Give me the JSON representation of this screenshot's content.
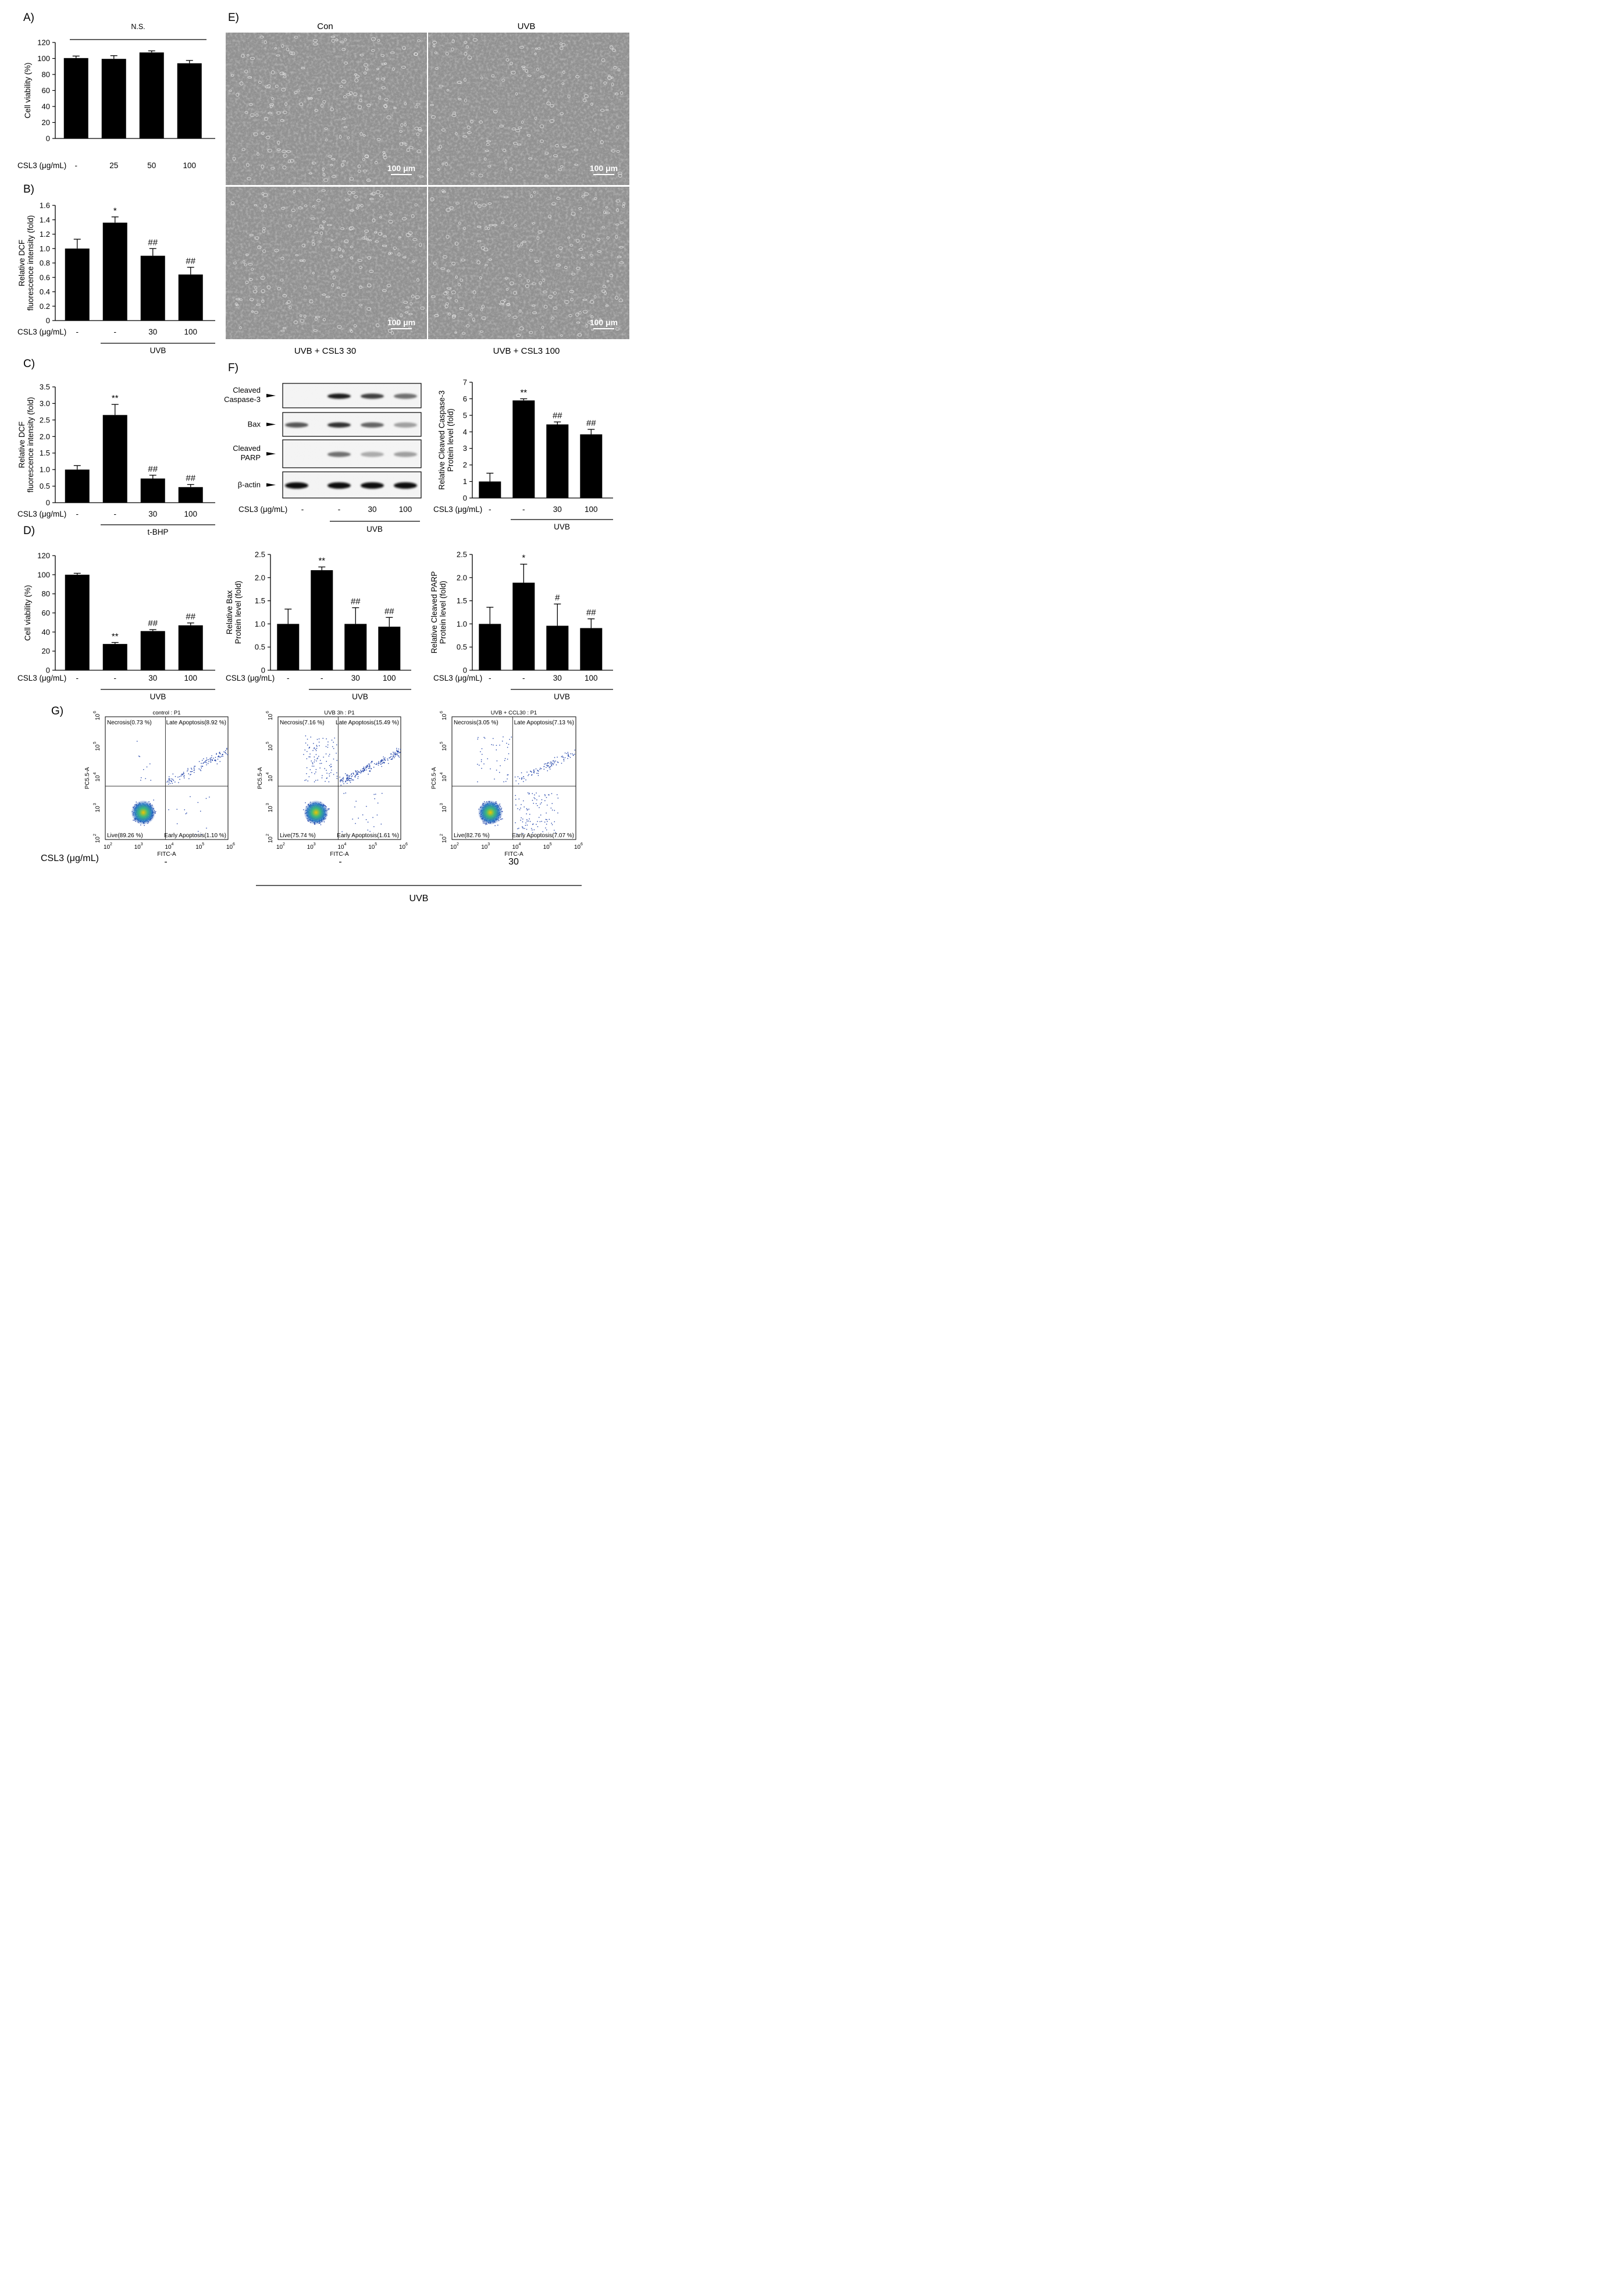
{
  "colors": {
    "bar": "#000000",
    "axis": "#000000",
    "micrograph": "#8f8f8f",
    "flow_dots": "#1c3fa8",
    "flow_core": "#3fbf7a",
    "flow_hot": "#f2c300"
  },
  "chart_data": [
    {
      "id": "A",
      "panel_label": "A)",
      "type": "bar",
      "ylabel": "Cell viability (%)",
      "ylim": [
        0,
        120
      ],
      "yticks": [
        0,
        20,
        40,
        60,
        80,
        100,
        120
      ],
      "cond_label": "CSL3 (μg/mL)",
      "categories": [
        "-",
        "25",
        "50",
        "100"
      ],
      "values": [
        100.5,
        99.5,
        107.5,
        94
      ],
      "errors": [
        2.5,
        4,
        2,
        3.5
      ],
      "top_line_label": "N.S.",
      "group_label": "",
      "group_from": 0,
      "group_to": 0
    },
    {
      "id": "B",
      "panel_label": "B)",
      "type": "bar",
      "ylabel": "Relative DCF fluorescence intensity (fold)",
      "ylabel_lines": [
        "Relative DCF",
        "fluorescence intensity (fold)"
      ],
      "ylim": [
        0,
        1.6
      ],
      "yticks": [
        "0",
        "0.2",
        "0.4",
        "0.6",
        "0.8",
        "1.0",
        "1.2",
        "1.4",
        "1.6"
      ],
      "cond_label": "CSL3 (μg/mL)",
      "categories": [
        "-",
        "-",
        "30",
        "100"
      ],
      "values": [
        1.0,
        1.36,
        0.9,
        0.64
      ],
      "errors": [
        0.13,
        0.08,
        0.1,
        0.1
      ],
      "sig": [
        "",
        "*",
        "##",
        "##"
      ],
      "group_label": "UVB",
      "group_from": 1,
      "group_to": 3
    },
    {
      "id": "C",
      "panel_label": "C)",
      "type": "bar",
      "ylabel": "Relative DCF fluorescence intensity (fold)",
      "ylabel_lines": [
        "Relative DCF",
        "fluorescence intensity (fold)"
      ],
      "ylim": [
        0,
        3.5
      ],
      "yticks": [
        "0",
        "0.5",
        "1.0",
        "1.5",
        "2.0",
        "2.5",
        "3.0",
        "3.5"
      ],
      "cond_label": "CSL3 (μg/mL)",
      "categories": [
        "-",
        "-",
        "30",
        "100"
      ],
      "values": [
        1.0,
        2.65,
        0.73,
        0.47
      ],
      "errors": [
        0.12,
        0.32,
        0.1,
        0.08
      ],
      "sig": [
        "",
        "**",
        "##",
        "##"
      ],
      "group_label": "t-BHP",
      "group_from": 1,
      "group_to": 3
    },
    {
      "id": "D",
      "panel_label": "D)",
      "type": "bar",
      "ylabel": "Cell viability (%)",
      "ylim": [
        0,
        120
      ],
      "yticks": [
        0,
        20,
        40,
        60,
        80,
        100,
        120
      ],
      "cond_label": "CSL3 (μg/mL)",
      "categories": [
        "-",
        "-",
        "30",
        "100"
      ],
      "values": [
        100,
        27.5,
        41,
        47
      ],
      "errors": [
        1.5,
        1.5,
        1.5,
        2.5
      ],
      "sig": [
        "",
        "**",
        "##",
        "##"
      ],
      "group_label": "UVB",
      "group_from": 1,
      "group_to": 3
    },
    {
      "id": "F1",
      "panel_label": "",
      "type": "bar",
      "ylabel": "Relative Cleaved Caspase-3 Protein level (fold)",
      "ylabel_lines": [
        "Relative Cleaved Caspase-3",
        "Protein level (fold)"
      ],
      "ylim": [
        0,
        7
      ],
      "yticks": [
        0,
        1,
        2,
        3,
        4,
        5,
        6,
        7
      ],
      "cond_label": "CSL3 (μg/mL)",
      "categories": [
        "-",
        "-",
        "30",
        "100"
      ],
      "values": [
        1.0,
        5.9,
        4.45,
        3.85
      ],
      "errors": [
        0.5,
        0.1,
        0.15,
        0.3
      ],
      "sig": [
        "",
        "**",
        "##",
        "##"
      ],
      "group_label": "UVB",
      "group_from": 1,
      "group_to": 3
    },
    {
      "id": "F2",
      "panel_label": "",
      "type": "bar",
      "ylabel": "Relative Bax Protein level (fold)",
      "ylabel_lines": [
        "Relative Bax",
        "Protein level (fold)"
      ],
      "ylim": [
        0,
        2.5
      ],
      "yticks": [
        "0",
        "0.5",
        "1.0",
        "1.5",
        "2.0",
        "2.5"
      ],
      "cond_label": "CSL3 (μg/mL)",
      "categories": [
        "-",
        "-",
        "30",
        "100"
      ],
      "values": [
        1.0,
        2.16,
        1.0,
        0.94
      ],
      "errors": [
        0.32,
        0.07,
        0.35,
        0.2
      ],
      "sig": [
        "",
        "**",
        "##",
        "##"
      ],
      "group_label": "UVB",
      "group_from": 1,
      "group_to": 3
    },
    {
      "id": "F3",
      "panel_label": "",
      "type": "bar",
      "ylabel": "Relative Cleaved PARP Protein level (fold)",
      "ylabel_lines": [
        "Relative Cleaved PARP",
        "Protein level (fold)"
      ],
      "ylim": [
        0,
        2.5
      ],
      "yticks": [
        "0",
        "0.5",
        "1.0",
        "1.5",
        "2.0",
        "2.5"
      ],
      "cond_label": "CSL3 (μg/mL)",
      "categories": [
        "-",
        "-",
        "30",
        "100"
      ],
      "values": [
        1.0,
        1.89,
        0.96,
        0.91
      ],
      "errors": [
        0.36,
        0.4,
        0.47,
        0.2
      ],
      "sig": [
        "",
        "*",
        "#",
        "##"
      ],
      "group_label": "UVB",
      "group_from": 1,
      "group_to": 3
    }
  ],
  "panel_e": {
    "label": "E)",
    "titles": [
      "Con",
      "UVB",
      "UVB + CSL3 30",
      "UVB + CSL3 100"
    ],
    "scale_bar": "100 μm"
  },
  "panel_f": {
    "label": "F)",
    "blot_rows": [
      "Cleaved Caspase-3",
      "Bax",
      "Cleaved PARP",
      "β-actin"
    ],
    "blot_intensity": [
      [
        0.0,
        0.95,
        0.8,
        0.6
      ],
      [
        0.7,
        0.85,
        0.65,
        0.4
      ],
      [
        0.0,
        0.6,
        0.35,
        0.4
      ],
      [
        1.0,
        1.0,
        1.0,
        1.0
      ]
    ],
    "cond_label": "CSL3 (μg/mL)",
    "lanes": [
      "-",
      "-",
      "30",
      "100"
    ],
    "group_label": "UVB"
  },
  "panel_g": {
    "label": "G)",
    "plots": [
      {
        "title": "control : P1",
        "necrosis": "Necrosis(0.73 %)",
        "late": "Late Apoptosis(8.92 %)",
        "live": "Live(89.26 %)",
        "early": "Early Apoptosis(1.10 %)",
        "condition": "-",
        "live_frac": 0.8926,
        "early_frac": 0.011,
        "late_frac": 0.0892,
        "necrosis_frac": 0.0073
      },
      {
        "title": "UVB 3h : P1",
        "necrosis": "Necrosis(7.16 %)",
        "late": "Late Apoptosis(15.49 %)",
        "live": "Live(75.74 %)",
        "early": "Early Apoptosis(1.61 %)",
        "condition": "-",
        "live_frac": 0.7574,
        "early_frac": 0.0161,
        "late_frac": 0.1549,
        "necrosis_frac": 0.0716
      },
      {
        "title": "UVB + CCL30 : P1",
        "necrosis": "Necrosis(3.05 %)",
        "late": "Late Apoptosis(7.13 %)",
        "live": "Live(82.76 %)",
        "early": "Early Apoptosis(7.07 %)",
        "condition": "30",
        "live_frac": 0.8276,
        "early_frac": 0.0707,
        "late_frac": 0.0713,
        "necrosis_frac": 0.0305
      }
    ],
    "xlabel": "FITC-A",
    "ylabel": "PC5.5-A",
    "log_ticks": [
      "2",
      "3",
      "4",
      "5",
      "6"
    ],
    "cond_label": "CSL3 (μg/mL)",
    "group_label": "UVB"
  }
}
